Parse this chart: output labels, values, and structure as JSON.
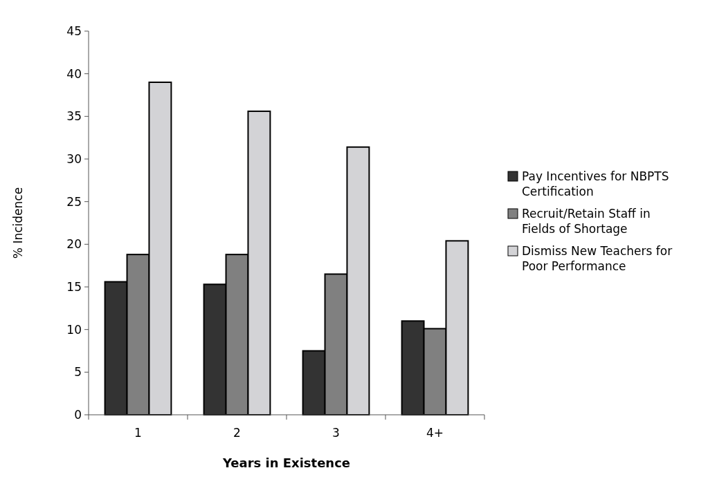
{
  "chart_data": {
    "type": "bar",
    "xlabel": "Years in Existence",
    "ylabel": "% Incidence",
    "categories": [
      "1",
      "2",
      "3",
      "4+"
    ],
    "series": [
      {
        "name": "Pay Incentives for NBPTS Certification",
        "color": "#333333",
        "values": [
          15.6,
          15.3,
          7.5,
          11.0
        ]
      },
      {
        "name": "Recruit/Retain Staff in Fields of Shortage",
        "color": "#808080",
        "values": [
          18.8,
          18.8,
          16.5,
          10.1
        ]
      },
      {
        "name": "Dismiss New Teachers for Poor Performance",
        "color": "#d3d3d6",
        "values": [
          39.0,
          35.6,
          31.4,
          20.4
        ]
      }
    ],
    "ylim": [
      0,
      45
    ],
    "yticks": [
      0,
      5,
      10,
      15,
      20,
      25,
      30,
      35,
      40,
      45
    ],
    "legend": "right",
    "grid": false
  }
}
